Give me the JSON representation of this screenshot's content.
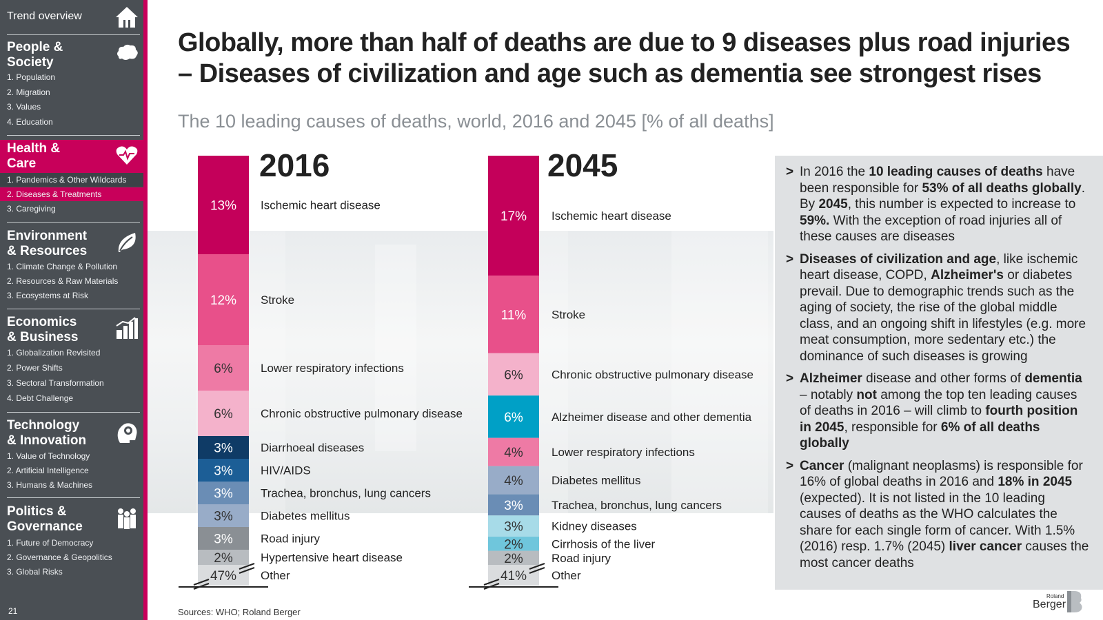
{
  "sidebar": {
    "top_label": "Trend overview",
    "page_number": "21",
    "sections": [
      {
        "title": "People &\nSociety",
        "icon": "cloud-head-icon",
        "items": [
          "1. Population",
          "2. Migration",
          "3. Values",
          "4. Education"
        ]
      },
      {
        "title": "Health &\nCare",
        "icon": "heart-icon",
        "items": [
          "1. Pandemics & Other Wildcards",
          "2. Diseases & Treatments",
          "3. Caregiving"
        ],
        "active_item": 1
      },
      {
        "title": "Environment\n& Resources",
        "icon": "leaf-icon",
        "items": [
          "1. Climate Change & Pollution",
          "2. Resources & Raw Materials",
          "3. Ecosystems at Risk"
        ]
      },
      {
        "title": "Economics\n& Business",
        "icon": "factory-chart-icon",
        "items": [
          "1. Globalization Revisited",
          "2. Power Shifts",
          "3. Sectoral Transformation",
          "4. Debt Challenge"
        ]
      },
      {
        "title": "Technology\n& Innovation",
        "icon": "gear-head-icon",
        "items": [
          "1. Value of Technology",
          "2. Artificial Intelligence",
          "3. Humans & Machines"
        ]
      },
      {
        "title": "Politics &\nGovernance",
        "icon": "people-icon",
        "items": [
          "1. Future of Democracy",
          "2. Governance & Geopolitics",
          "3. Global Risks"
        ]
      }
    ]
  },
  "headline": "Globally, more than half of deaths are due to 9 diseases plus road injuries – Diseases of civilization and age such as dementia see strongest rises",
  "subtitle": "The 10 leading causes of deaths, world, 2016 and 2045 [% of all deaths]",
  "chart_data": {
    "type": "bar",
    "subtype": "stacked-100",
    "unit": "% of all deaths",
    "series": [
      {
        "name": "2016",
        "segments": [
          {
            "label": "Ischemic heart disease",
            "value": 13,
            "value_label": "13%",
            "color": "#c4005a"
          },
          {
            "label": "Stroke",
            "value": 12,
            "value_label": "12%",
            "color": "#e8508a"
          },
          {
            "label": "Lower respiratory infections",
            "value": 6,
            "value_label": "6%",
            "color": "#ee7aa5"
          },
          {
            "label": "Chronic obstructive pulmonary disease",
            "value": 6,
            "value_label": "6%",
            "color": "#f4b2cb"
          },
          {
            "label": "Diarrhoeal diseases",
            "value": 3,
            "value_label": "3%",
            "color": "#0f3b66"
          },
          {
            "label": "HIV/AIDS",
            "value": 3,
            "value_label": "3%",
            "color": "#1c5e96"
          },
          {
            "label": "Trachea, bronchus, lung cancers",
            "value": 3,
            "value_label": "3%",
            "color": "#6a8db5"
          },
          {
            "label": "Diabetes mellitus",
            "value": 3,
            "value_label": "3%",
            "color": "#98acc8"
          },
          {
            "label": "Road injury",
            "value": 3,
            "value_label": "3%",
            "color": "#8a8f94"
          },
          {
            "label": "Hypertensive heart disease",
            "value": 2,
            "value_label": "2%",
            "color": "#b8bcc0"
          },
          {
            "label": "Other",
            "value": 47,
            "value_label": "47%",
            "color": "#dadcde"
          }
        ]
      },
      {
        "name": "2045",
        "segments": [
          {
            "label": "Ischemic heart disease",
            "value": 17,
            "value_label": "17%",
            "color": "#c4005a"
          },
          {
            "label": "Stroke",
            "value": 11,
            "value_label": "11%",
            "color": "#e8508a"
          },
          {
            "label": "Chronic obstructive pulmonary disease",
            "value": 6,
            "value_label": "6%",
            "color": "#f4b2cb"
          },
          {
            "label": "Alzheimer disease and other dementia",
            "value": 6,
            "value_label": "6%",
            "color": "#00a0c6"
          },
          {
            "label": "Lower respiratory infections",
            "value": 4,
            "value_label": "4%",
            "color": "#ee7aa5"
          },
          {
            "label": "Diabetes mellitus",
            "value": 4,
            "value_label": "4%",
            "color": "#98acc8"
          },
          {
            "label": "Trachea, bronchus, lung cancers",
            "value": 3,
            "value_label": "3%",
            "color": "#6a8db5"
          },
          {
            "label": "Kidney diseases",
            "value": 3,
            "value_label": "3%",
            "color": "#a7dbe8"
          },
          {
            "label": "Cirrhosis of the liver",
            "value": 2,
            "value_label": "2%",
            "color": "#6fc6dc"
          },
          {
            "label": "Road injury",
            "value": 2,
            "value_label": "2%",
            "color": "#b8bcc0"
          },
          {
            "label": "Other",
            "value": 41,
            "value_label": "41%",
            "color": "#dadcde"
          }
        ]
      }
    ],
    "axis_break": true,
    "legend": "inline-labels"
  },
  "panel": {
    "bullets": [
      "In 2016 the <b>10 leading causes of deaths</b> have been responsible for <b>53% of all deaths globally</b>. By <b>2045</b>, this number is expected to increase to <b>59%.</b> With the exception of road injuries all of these causes are diseases",
      "<b>Diseases of civilization and age</b>, like ischemic heart disease, COPD, <b>Alzheimer's</b> or diabetes prevail. Due to demographic trends such as the aging of society, the rise of the global middle class, and an ongoing shift in lifestyles (e.g. more meat consumption, more sedentary etc.) the dominance of such diseases is growing",
      "<b>Alzheimer</b> disease and other forms of <b>dementia</b> – notably <b>not</b> among the top ten leading causes of deaths in 2016 – will climb to <b>fourth position in 2045</b>, responsible for <b>6% of all deaths globally</b>",
      "<b>Cancer</b> (malignant neoplasms) is responsible for 16% of global deaths in 2016 and <b>18% in 2045</b> (expected). It is not listed in the 10 leading causes of deaths as the WHO calculates the share for each single form of cancer. With 1.5% (2016) resp. 1.7% (2045) <b>liver cancer</b> causes the most cancer deaths"
    ]
  },
  "footer": {
    "sources": "Sources: WHO; Roland Berger",
    "logo_small": "Roland",
    "logo_big": "Berger"
  },
  "colors": {
    "accent": "#c8005a",
    "sidebar_bg": "#4a4f54",
    "panel_bg": "#dfe1e3"
  }
}
